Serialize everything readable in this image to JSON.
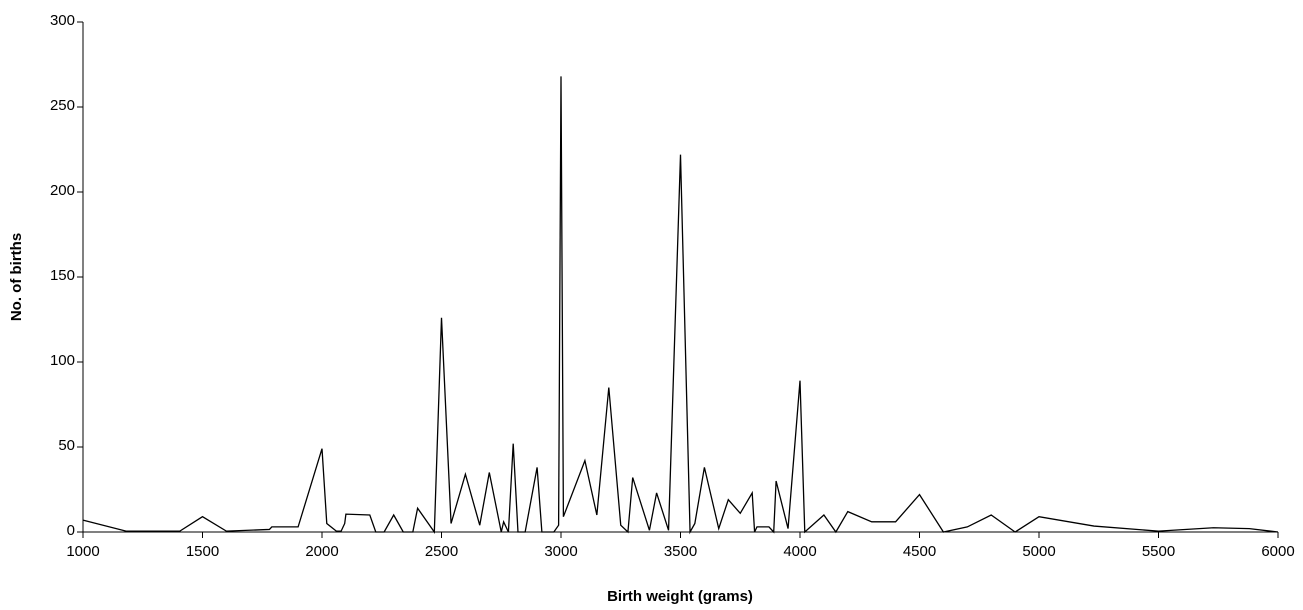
{
  "chart_data": {
    "type": "line",
    "x_label": "Birth weight (grams)",
    "y_label": "No. of births",
    "x": [
      1000,
      1180,
      1405,
      1500,
      1600,
      1780,
      1790,
      1900,
      2000,
      2020,
      2060,
      2080,
      2095,
      2100,
      2200,
      2225,
      2260,
      2300,
      2340,
      2380,
      2400,
      2470,
      2500,
      2540,
      2600,
      2660,
      2700,
      2750,
      2760,
      2780,
      2800,
      2820,
      2850,
      2900,
      2920,
      2970,
      2990,
      3000,
      3010,
      3100,
      3150,
      3200,
      3250,
      3280,
      3300,
      3370,
      3400,
      3450,
      3500,
      3540,
      3560,
      3600,
      3660,
      3700,
      3750,
      3800,
      3810,
      3820,
      3870,
      3890,
      3900,
      3950,
      4000,
      4020,
      4100,
      4150,
      4200,
      4300,
      4400,
      4500,
      4600,
      4700,
      4800,
      4900,
      5000,
      5230,
      5500,
      5730,
      5880,
      6000
    ],
    "series": [
      {
        "name": "Births",
        "color": "#000000",
        "values": [
          7,
          0.5,
          0.5,
          9,
          0.5,
          1.5,
          3,
          3,
          49,
          5,
          0.5,
          0.5,
          5,
          10.5,
          10,
          0,
          0,
          10,
          0,
          0,
          14,
          0,
          126,
          5,
          34,
          4,
          35,
          0,
          6,
          0,
          52,
          0,
          0,
          38,
          0,
          0,
          4,
          268,
          9,
          42,
          10,
          85,
          4,
          0,
          32,
          1,
          23,
          1,
          222,
          0,
          5,
          38,
          2,
          19,
          11,
          23,
          0,
          3,
          3,
          0,
          30,
          2,
          89,
          0,
          10,
          0,
          12,
          6,
          6,
          22,
          0,
          3,
          10,
          0,
          9,
          3.5,
          0.5,
          2.5,
          2,
          0
        ]
      }
    ],
    "xlim": [
      1000,
      6000
    ],
    "ylim": [
      0,
      300
    ],
    "xticks": [
      1000,
      1500,
      2000,
      2500,
      3000,
      3500,
      4000,
      4500,
      5000,
      5500,
      6000
    ],
    "yticks": [
      0,
      50,
      100,
      150,
      200,
      250,
      300
    ]
  }
}
